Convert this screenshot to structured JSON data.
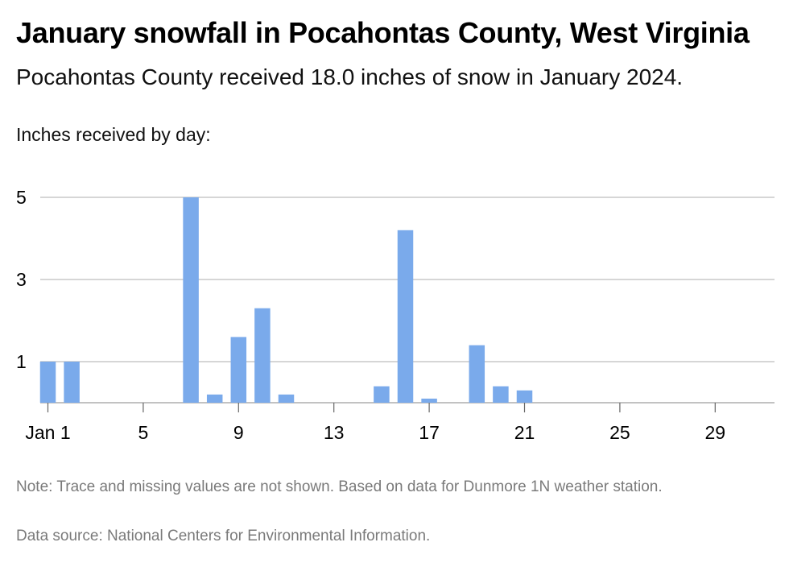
{
  "header": {
    "title": "January snowfall in Pocahontas County, West Virginia",
    "subtitle": "Pocahontas County received 18.0 inches of snow in January 2024."
  },
  "footer": {
    "note": "Note: Trace and missing values are not shown. Based on data for Dunmore 1N weather station.",
    "source": "Data source: National Centers for Environmental Information."
  },
  "chart_data": {
    "type": "bar",
    "title": "January snowfall in Pocahontas County, West Virginia",
    "subtitle": "Pocahontas County received 18.0 inches of snow in January 2024.",
    "ylabel": "Inches received by day:",
    "xlabel": "",
    "categories": [
      1,
      2,
      3,
      4,
      5,
      6,
      7,
      8,
      9,
      10,
      11,
      12,
      13,
      14,
      15,
      16,
      17,
      18,
      19,
      20,
      21,
      22,
      23,
      24,
      25,
      26,
      27,
      28,
      29,
      30,
      31
    ],
    "values": [
      1.0,
      1.0,
      0,
      0,
      0,
      0,
      5.0,
      0.2,
      1.6,
      2.3,
      0.2,
      0,
      0,
      0,
      0.4,
      4.2,
      0.1,
      0,
      1.4,
      0.4,
      0.3,
      0,
      0,
      0,
      0,
      0,
      0,
      0,
      0,
      0,
      0
    ],
    "ylim": [
      0,
      5
    ],
    "yticks": [
      1,
      3,
      5
    ],
    "xtick_labels": [
      {
        "day": 1,
        "label": "Jan 1"
      },
      {
        "day": 5,
        "label": "5"
      },
      {
        "day": 9,
        "label": "9"
      },
      {
        "day": 13,
        "label": "13"
      },
      {
        "day": 17,
        "label": "17"
      },
      {
        "day": 21,
        "label": "21"
      },
      {
        "day": 25,
        "label": "25"
      },
      {
        "day": 29,
        "label": "29"
      }
    ],
    "bar_color": "#7aaaeb",
    "grid": true,
    "legend": "none"
  }
}
